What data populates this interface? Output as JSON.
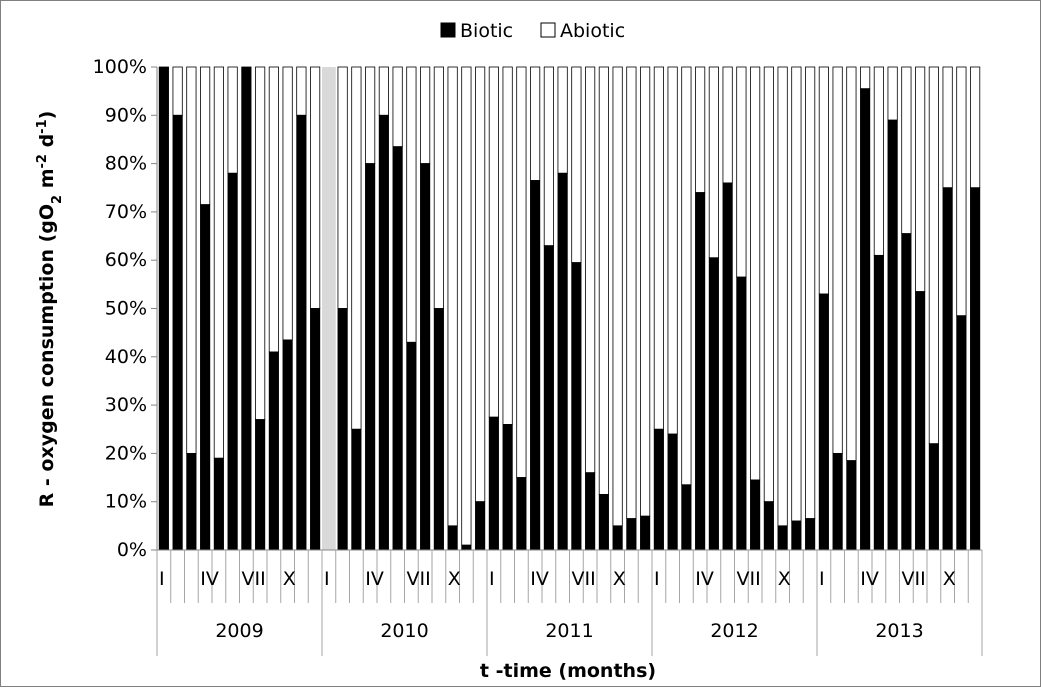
{
  "chart_data": {
    "type": "bar",
    "stacked": true,
    "percent_stacked": true,
    "series": [
      {
        "name": "Biotic",
        "color": "#000000",
        "values": [
          100,
          90,
          20,
          71.5,
          19,
          78,
          100,
          27,
          41,
          43.5,
          90,
          50,
          null,
          50,
          25,
          80,
          90,
          83.5,
          43,
          80,
          50,
          5,
          1,
          10,
          27.5,
          26,
          15,
          76.5,
          63,
          78,
          59.5,
          16,
          11.5,
          5,
          6.5,
          7,
          25,
          24,
          13.5,
          74,
          60.5,
          76,
          56.5,
          14.5,
          10,
          5,
          6,
          6.5,
          53,
          20,
          18.5,
          95.5,
          61,
          89,
          65.5,
          53.5,
          22,
          75,
          48.5,
          75
        ]
      },
      {
        "name": "Abiotic",
        "color": "#ffffff",
        "values": [
          0,
          10,
          80,
          28.5,
          81,
          22,
          0,
          73,
          59,
          56.5,
          10,
          50,
          null,
          50,
          75,
          20,
          10,
          16.5,
          57,
          20,
          50,
          95,
          99,
          90,
          72.5,
          74,
          85,
          23.5,
          37,
          22,
          40.5,
          84,
          88.5,
          95,
          93.5,
          93,
          75,
          76,
          86.5,
          26,
          39.5,
          24,
          43.5,
          85.5,
          90,
          95,
          94,
          93.5,
          47,
          80,
          81.5,
          4.5,
          39,
          11,
          34.5,
          46.5,
          78,
          25,
          51.5,
          25
        ]
      }
    ],
    "years": [
      "2009",
      "2010",
      "2011",
      "2012",
      "2013"
    ],
    "month_labels": [
      "I",
      "",
      "",
      "IV",
      "",
      "",
      "VII",
      "",
      "",
      "X",
      "",
      ""
    ],
    "missing_months": [
      "2010-I"
    ],
    "yticks": [
      "0%",
      "10%",
      "20%",
      "30%",
      "40%",
      "50%",
      "60%",
      "70%",
      "80%",
      "90%",
      "100%"
    ],
    "ylim": [
      0,
      100
    ],
    "ylabel_parts": [
      "R - oxygen consumption (gO",
      "2",
      " m",
      "-2",
      " d",
      "-1",
      ")"
    ],
    "xlabel": "t -time (months)",
    "legend_position": "top-center",
    "grid": false,
    "missing_fill": "#d9d9d9"
  }
}
